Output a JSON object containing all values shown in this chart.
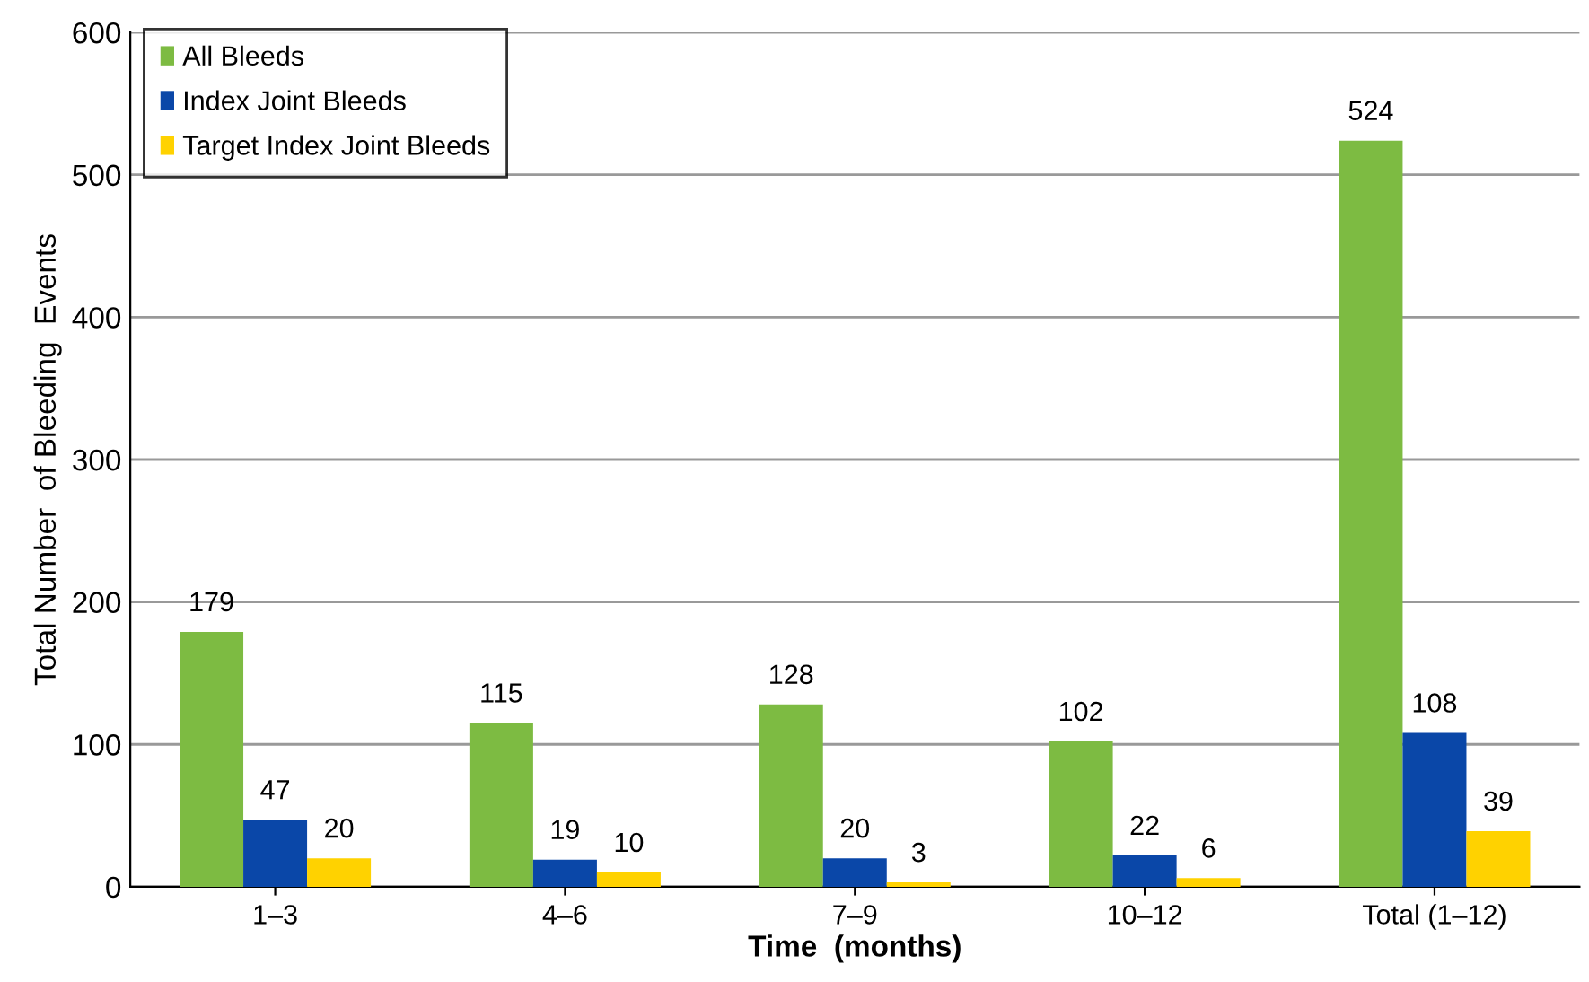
{
  "chart_data": {
    "type": "bar",
    "xlabel": "Time  (months)",
    "ylabel": "Total Number  of Bleeding  Events",
    "categories": [
      "1–3",
      "4–6",
      "7–9",
      "10–12",
      "Total (1–12)"
    ],
    "series": [
      {
        "name": "All Bleeds",
        "color": "#7dbb42",
        "values": [
          179,
          115,
          128,
          102,
          524
        ]
      },
      {
        "name": "Index Joint Bleeds",
        "color": "#0a47a8",
        "values": [
          47,
          19,
          20,
          22,
          108
        ]
      },
      {
        "name": "Target Index Joint Bleeds",
        "color": "#ffd200",
        "values": [
          20,
          10,
          3,
          6,
          39
        ]
      }
    ],
    "ylim": [
      0,
      600
    ],
    "yticks": [
      0,
      100,
      200,
      300,
      400,
      500,
      600
    ],
    "grid": "y",
    "legend": "top left",
    "data_labels": true
  }
}
